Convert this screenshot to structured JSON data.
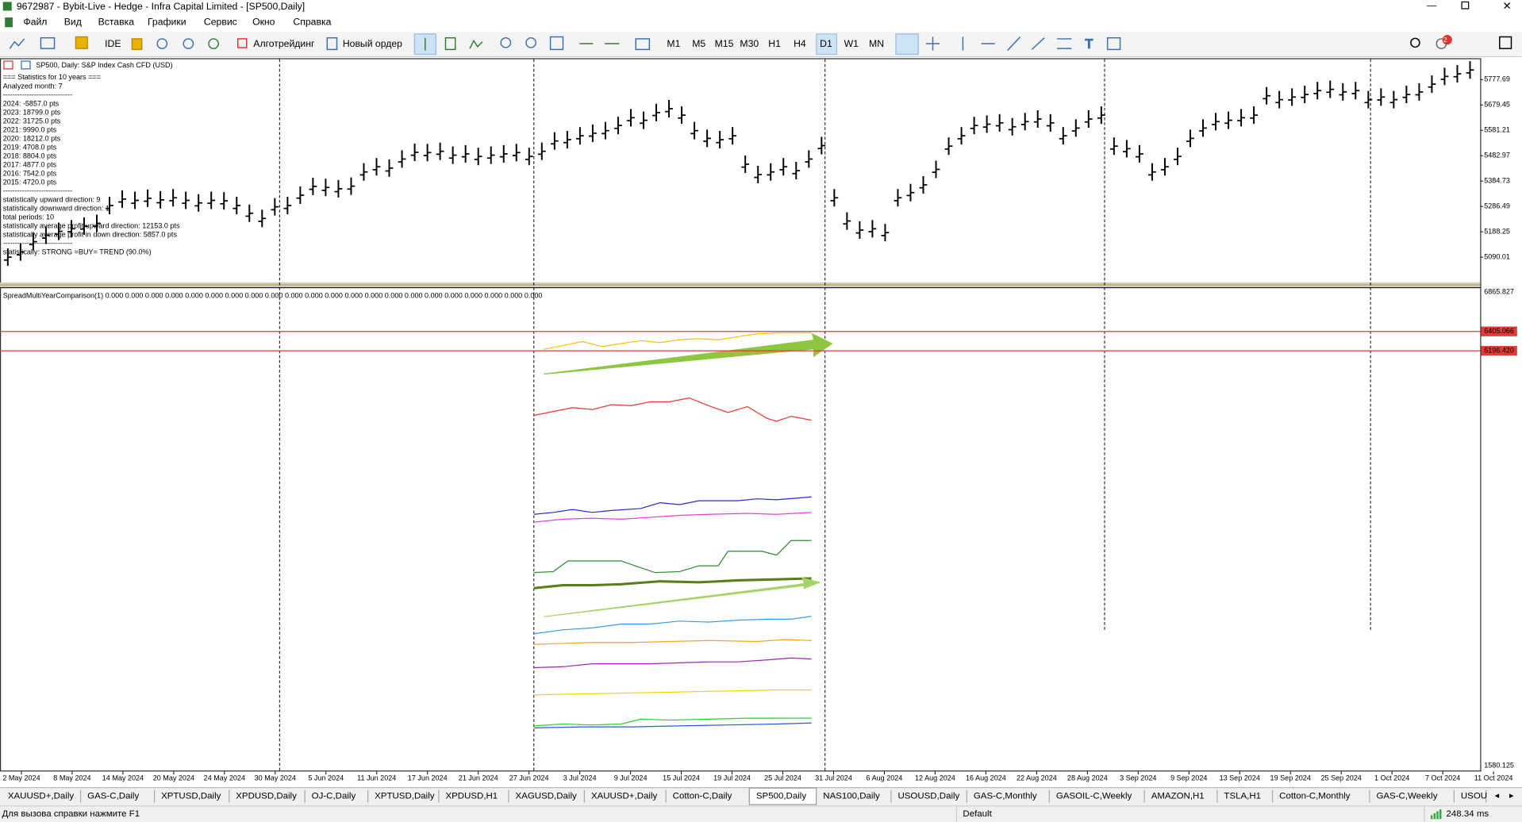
{
  "window": {
    "title": "9672987 - Bybit-Live - Hedge - Infra Capital Limited - [SP500,Daily]"
  },
  "menu": [
    "Файл",
    "Вид",
    "Вставка",
    "Графики",
    "Сервис",
    "Окно",
    "Справка"
  ],
  "toolbar": {
    "buttons": [
      "IDE",
      "Алготрейдинг",
      "Новый ордер"
    ],
    "timeframes": [
      "M1",
      "M5",
      "M15",
      "M30",
      "H1",
      "H4",
      "D1",
      "W1",
      "MN"
    ],
    "active_timeframe": 6
  },
  "chart": {
    "symbol_label": "SP500, Daily:  S&P Index Cash CFD (USD)",
    "info_lines": [
      "=== Statistics for 10 years ===",
      "Analyzed month: 7",
      "-----------------------------",
      "2024: -5857.0 pts",
      "2023: 18799.0 pts",
      "2022: 31725.0 pts",
      "2021: 9990.0 pts",
      "2020: 18212.0 pts",
      "2019: 4708.0 pts",
      "2018: 8804.0 pts",
      "2017: 4877.0 pts",
      "2016: 7542.0 pts",
      "2015: 4720.0 pts",
      "-----------------------------",
      "statistically upward direction: 9",
      "statistically downward direction: 1",
      "total periods: 10",
      "statistically average profit upward direction: 12153.0 pts",
      "statistically average profit in down direction: 5857.0 pts",
      "-----------------------------",
      "statistically: STRONG =BUY= TREND (90.0%)"
    ],
    "ylim": [
      4992.2,
      5860.4
    ],
    "yticks": [
      5777.69,
      5679.45,
      5581.21,
      5482.97,
      5384.73,
      5286.49,
      5188.25,
      5090.01
    ],
    "closes": [
      5090,
      5110,
      5150,
      5175,
      5190,
      5200,
      5210,
      5221,
      5290,
      5315,
      5310,
      5318,
      5312,
      5320,
      5310,
      5300,
      5310,
      5308,
      5290,
      5260,
      5240,
      5285,
      5290,
      5330,
      5364,
      5360,
      5355,
      5365,
      5420,
      5440,
      5435,
      5470,
      5496,
      5495,
      5500,
      5485,
      5490,
      5480,
      5485,
      5490,
      5495,
      5480,
      5500,
      5540,
      5545,
      5560,
      5570,
      5580,
      5600,
      5630,
      5620,
      5650,
      5665,
      5640,
      5580,
      5550,
      5545,
      5560,
      5450,
      5410,
      5420,
      5440,
      5425,
      5470,
      5522,
      5320,
      5230,
      5195,
      5200,
      5185,
      5320,
      5340,
      5370,
      5430,
      5520,
      5560,
      5600,
      5605,
      5610,
      5595,
      5615,
      5625,
      5610,
      5560,
      5590,
      5625,
      5640,
      5520,
      5510,
      5490,
      5420,
      5440,
      5480,
      5550,
      5590,
      5615,
      5620,
      5630,
      5640,
      5715,
      5700,
      5710,
      5720,
      5735,
      5740,
      5730,
      5735,
      5700,
      5710,
      5700,
      5720,
      5730,
      5760,
      5790,
      5800,
      5815
    ],
    "dates": [
      "2 May 2024",
      "8 May 2024",
      "14 May 2024",
      "20 May 2024",
      "24 May 2024",
      "30 May 2024",
      "5 Jun 2024",
      "11 Jun 2024",
      "17 Jun 2024",
      "21 Jun 2024",
      "27 Jun 2024",
      "3 Jul 2024",
      "9 Jul 2024",
      "15 Jul 2024",
      "19 Jul 2024",
      "25 Jul 2024",
      "31 Jul 2024",
      "6 Aug 2024",
      "12 Aug 2024",
      "16 Aug 2024",
      "22 Aug 2024",
      "28 Aug 2024",
      "3 Sep 2024",
      "9 Sep 2024",
      "13 Sep 2024",
      "19 Sep 2024",
      "25 Sep 2024",
      "1 Oct 2024",
      "7 Oct 2024",
      "11 Oct 2024"
    ]
  },
  "indicator": {
    "label": "SpreadMultiYearComparison(1) 0.000 0.000 0.000 0.000 0.000 0.000 0.000 0.000 0.000 0.000 0.000 0.000 0.000 0.000 0.000 0.000 0.000 0.000 0.000 0.000 0.000 0.000",
    "axis_labels": [
      "6865.827",
      "1580.125"
    ],
    "levels": [
      "6405.066",
      "6196.420"
    ]
  },
  "tabs": [
    "XAUUSD+,Daily",
    "GAS-C,Daily",
    "XPTUSD,Daily",
    "XPDUSD,Daily",
    "OJ-C,Daily",
    "XPTUSD,Daily",
    "XPDUSD,H1",
    "XAGUSD,Daily",
    "XAUUSD+,Daily",
    "Cotton-C,Daily",
    "SP500,Daily",
    "NAS100,Daily",
    "USOUSD,Daily",
    "GAS-C,Monthly",
    "GASOIL-C,Weekly",
    "AMAZON,H1",
    "TSLA,H1",
    "Cotton-C,Monthly",
    "GAS-C,Weekly",
    "USOU"
  ],
  "active_tab": 10,
  "status": {
    "help": "Для вызова справки нажмите F1",
    "profile": "Default",
    "ping": "248.34 ms"
  }
}
